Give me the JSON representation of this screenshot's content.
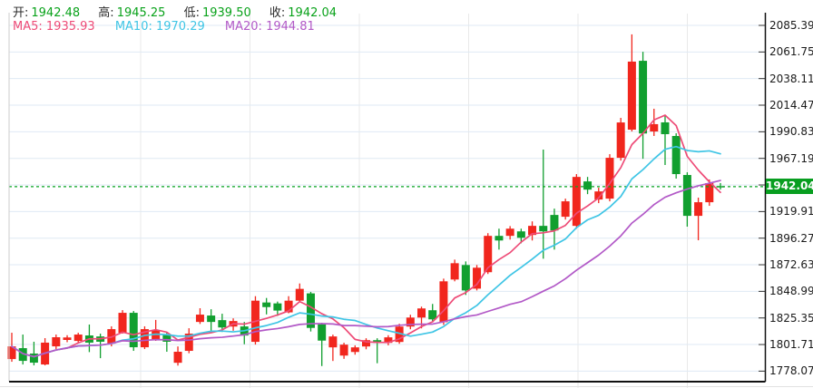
{
  "header": {
    "ohlc": [
      {
        "label": "开:",
        "value": "1942.48"
      },
      {
        "label": "高:",
        "value": "1945.25"
      },
      {
        "label": "低:",
        "value": "1939.50"
      },
      {
        "label": "收:",
        "value": "1942.04"
      }
    ],
    "ma": [
      {
        "label": "MA5:",
        "value": "1935.93",
        "color": "#ee4b77"
      },
      {
        "label": "MA10:",
        "value": "1970.29",
        "color": "#3fc5e5"
      },
      {
        "label": "MA20:",
        "value": "1944.81",
        "color": "#b259c7"
      }
    ]
  },
  "axis": {
    "ticks": [
      2085.39,
      2061.75,
      2038.11,
      2014.47,
      1990.83,
      1967.19,
      1943.55,
      1919.91,
      1896.27,
      1872.63,
      1848.99,
      1825.35,
      1801.71,
      1778.07
    ]
  },
  "marker": {
    "value": "1942.04",
    "price": 1942.04,
    "color": "#089e20"
  },
  "colors": {
    "up": "#f1261d",
    "down": "#119f2f",
    "grid_h": "#dfeaf4",
    "grid_v": "#e9e9e9",
    "axis": "#111111",
    "border_left": "#cccccc",
    "dotted": "#0aa422",
    "bottom_strip_line": "#e2e2e2"
  },
  "chart_data": {
    "type": "candlestick",
    "title": "",
    "ylabel": "",
    "ylim": [
      1778.07,
      2085.39
    ],
    "grid": true,
    "ma_periods": [
      5,
      10,
      20
    ],
    "note": "candles are [open, high, low, close]; red=up green=down (CN convention); last candle matches OHLC readout",
    "candles": [
      [
        1788.8,
        1812.2,
        1786.4,
        1800.1
      ],
      [
        1798.5,
        1810.6,
        1784.0,
        1787.2
      ],
      [
        1793.7,
        1804.2,
        1783.2,
        1785.6
      ],
      [
        1784.0,
        1807.4,
        1783.2,
        1803.4
      ],
      [
        1800.1,
        1810.6,
        1797.7,
        1808.2
      ],
      [
        1805.8,
        1810.0,
        1803.8,
        1808.0
      ],
      [
        1804.9,
        1812.2,
        1803.4,
        1810.6
      ],
      [
        1809.8,
        1819.5,
        1795.0,
        1803.4
      ],
      [
        1808.9,
        1811.4,
        1789.6,
        1804.2
      ],
      [
        1802.5,
        1817.9,
        1800.1,
        1815.4
      ],
      [
        1812.2,
        1832.3,
        1811.4,
        1829.9
      ],
      [
        1829.9,
        1831.5,
        1796.1,
        1799.3
      ],
      [
        1799.3,
        1817.9,
        1797.7,
        1815.4
      ],
      [
        1806.6,
        1823.6,
        1805.0,
        1814.6
      ],
      [
        1810.6,
        1812.2,
        1795.3,
        1804.2
      ],
      [
        1785.5,
        1800.0,
        1783.0,
        1795.3
      ],
      [
        1796.1,
        1816.2,
        1794.0,
        1811.4
      ],
      [
        1821.8,
        1834.0,
        1820.0,
        1828.3
      ],
      [
        1827.5,
        1833.1,
        1812.0,
        1821.8
      ],
      [
        1823.4,
        1829.1,
        1812.9,
        1816.9
      ],
      [
        1817.7,
        1825.0,
        1814.0,
        1822.6
      ],
      [
        1817.8,
        1821.8,
        1802.0,
        1809.7
      ],
      [
        1804.1,
        1844.7,
        1801.7,
        1840.7
      ],
      [
        1839.1,
        1843.1,
        1828.5,
        1835.0
      ],
      [
        1838.3,
        1839.9,
        1827.1,
        1831.9
      ],
      [
        1830.3,
        1844.7,
        1829.5,
        1840.7
      ],
      [
        1840.7,
        1856.0,
        1839.1,
        1851.2
      ],
      [
        1847.2,
        1848.5,
        1813.3,
        1816.5
      ],
      [
        1819.7,
        1821.0,
        1782.6,
        1805.2
      ],
      [
        1799.2,
        1810.5,
        1787.1,
        1808.9
      ],
      [
        1791.9,
        1803.3,
        1789.0,
        1801.6
      ],
      [
        1795.1,
        1801.0,
        1792.7,
        1799.2
      ],
      [
        1800.0,
        1807.3,
        1797.5,
        1805.6
      ],
      [
        1805.6,
        1807.3,
        1785.1,
        1803.2
      ],
      [
        1803.2,
        1810.0,
        1801.0,
        1808.1
      ],
      [
        1804.0,
        1820.2,
        1802.4,
        1817.7
      ],
      [
        1817.7,
        1828.2,
        1815.3,
        1825.7
      ],
      [
        1825.7,
        1835.4,
        1816.1,
        1833.8
      ],
      [
        1832.2,
        1837.8,
        1822.5,
        1824.1
      ],
      [
        1821.6,
        1860.3,
        1819.2,
        1857.9
      ],
      [
        1859.5,
        1877.2,
        1857.9,
        1874.0
      ],
      [
        1872.4,
        1875.6,
        1845.8,
        1849.8
      ],
      [
        1851.4,
        1872.4,
        1849.8,
        1870.0
      ],
      [
        1866.0,
        1900.7,
        1864.4,
        1898.3
      ],
      [
        1898.3,
        1904.7,
        1886.1,
        1894.2
      ],
      [
        1898.3,
        1907.0,
        1895.0,
        1904.7
      ],
      [
        1902.3,
        1904.7,
        1891.7,
        1896.6
      ],
      [
        1899.1,
        1911.2,
        1894.2,
        1907.2
      ],
      [
        1907.2,
        1975.0,
        1878.0,
        1902.3
      ],
      [
        1916.9,
        1922.5,
        1886.1,
        1903.1
      ],
      [
        1915.3,
        1931.4,
        1912.8,
        1929.0
      ],
      [
        1907.2,
        1953.2,
        1904.7,
        1950.7
      ],
      [
        1946.7,
        1950.7,
        1935.4,
        1939.4
      ],
      [
        1930.6,
        1941.1,
        1927.4,
        1937.8
      ],
      [
        1931.4,
        1970.9,
        1929.0,
        1967.7
      ],
      [
        1967.7,
        2003.2,
        1965.2,
        1999.1
      ],
      [
        1992.7,
        2077.4,
        1991.1,
        2053.2
      ],
      [
        2053.9,
        2061.9,
        1966.8,
        1989.3
      ],
      [
        1991.1,
        2011.3,
        1987.1,
        1997.6
      ],
      [
        1999.2,
        2004.8,
        1961.3,
        1988.7
      ],
      [
        1987.1,
        1989.5,
        1949.2,
        1953.2
      ],
      [
        1952.4,
        1954.8,
        1906.5,
        1916.1
      ],
      [
        1916.1,
        1932.3,
        1894.4,
        1928.2
      ],
      [
        1928.2,
        1948.4,
        1925.0,
        1945.2
      ],
      [
        1942.48,
        1945.25,
        1939.5,
        1942.04
      ]
    ]
  }
}
